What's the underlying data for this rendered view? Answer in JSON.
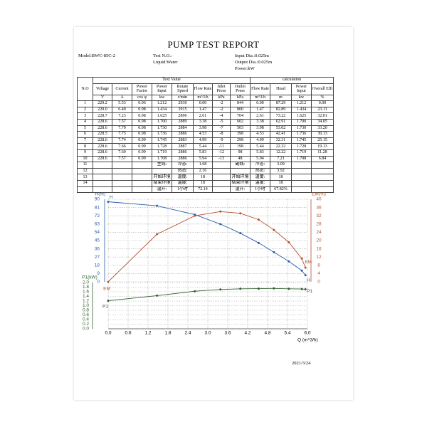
{
  "header": {
    "title": "PUMP TEST REPORT",
    "model": "Model:BWC-85C-2",
    "test_no": "Test N.O.:",
    "liquid": "Liquid:Water",
    "input_dia": "Input Dia.:0.025m",
    "output_dia": "Output Dia.:0.025m",
    "power": "Power:kW"
  },
  "table": {
    "group_headers": [
      "Text Value",
      "calculation"
    ],
    "columns": [
      "N.O",
      "Voltage",
      "Current",
      "Power Factor",
      "Power Input",
      "Rotate Speed",
      "Flow Rate",
      "Inlet Press",
      "Outlet Press",
      "Flow Rate",
      "Head",
      "Power Input",
      "Overall Effi"
    ],
    "units": [
      "V",
      "A",
      "cos φ",
      "kw",
      "r/min",
      "m^3/h",
      "kPa",
      "kPa",
      "m^3/h",
      "m",
      "kw",
      "%"
    ],
    "rows": [
      [
        "1",
        "229.2",
        "5.53",
        "0.96",
        "1.212",
        "2930",
        "0.00",
        "-2",
        "844",
        "0.00",
        "87.29",
        "1.212",
        "0.00"
      ],
      [
        "2",
        "229.0",
        "6.40",
        "0.98",
        "1.434",
        "2915",
        "1.47",
        "-2",
        "800",
        "1.47",
        "82.89",
        "1.434",
        "23.11"
      ],
      [
        "3",
        "228.7",
        "7.23",
        "0.98",
        "1.625",
        "2896",
        "2.61",
        "-4",
        "704",
        "2.61",
        "73.22",
        "1.625",
        "32.01"
      ],
      [
        "4",
        "228.6",
        "7.57",
        "0.98",
        "1.700",
        "2889",
        "3.38",
        "-5",
        "602",
        "3.38",
        "62.91",
        "1.700",
        "34.05"
      ],
      [
        "5",
        "228.6",
        "7.70",
        "0.98",
        "1.730",
        "2884",
        "3.98",
        "-7",
        "503",
        "3.98",
        "53.02",
        "1.730",
        "33.20"
      ],
      [
        "6",
        "228.5",
        "7.75",
        "0.98",
        "1.736",
        "2886",
        "4.53",
        "-8",
        "398",
        "4.53",
        "42.41",
        "1.736",
        "30.13"
      ],
      [
        "7",
        "228.6",
        "7.74",
        "0.99",
        "1.745",
        "2883",
        "4.99",
        "-9",
        "298",
        "4.99",
        "32.31",
        "1.745",
        "25.15"
      ],
      [
        "8",
        "228.6",
        "7.66",
        "0.99",
        "1.728",
        "2887",
        "5.44",
        "-11",
        "198",
        "5.44",
        "22.32",
        "1.728",
        "19.13"
      ],
      [
        "9",
        "228.6",
        "7.60",
        "0.99",
        "1.719",
        "2886",
        "5.83",
        "-12",
        "98",
        "5.83",
        "12.22",
        "1.719",
        "11.28"
      ],
      [
        "10",
        "228.6",
        "7.57",
        "0.99",
        "1.708",
        "2886",
        "5.94",
        "-13",
        "48",
        "5.94",
        "7.21",
        "1.708",
        "6.84"
      ],
      [
        "11",
        null,
        null,
        null,
        "主线:",
        "冷态:",
        "1.68",
        null,
        "副线:",
        "冷态:",
        "3.09",
        null,
        null
      ],
      [
        "12",
        null,
        null,
        null,
        null,
        "热态:",
        "2.16",
        null,
        null,
        "热态:",
        "3.92",
        null,
        null
      ],
      [
        "13",
        null,
        null,
        null,
        "开始环境",
        "温度:",
        "18",
        null,
        "开始环境",
        "温度:",
        "18",
        null,
        null
      ],
      [
        "14",
        null,
        null,
        null,
        "结束环境",
        "温度:",
        "18",
        null,
        "结束环境",
        "温度:",
        "18",
        null,
        null
      ],
      [
        null,
        null,
        null,
        null,
        "温升:",
        "1小时",
        "72.14",
        null,
        "温升:",
        "1小时",
        "67.82%",
        null,
        null
      ]
    ]
  },
  "chart_data": {
    "type": "line",
    "x_label": "Q (m^3/h)",
    "y_label": "H(m)",
    "y2_label": "EM(%)",
    "y3_label": "P1(kW)",
    "x": [
      0.0,
      1.47,
      2.61,
      3.38,
      3.98,
      4.53,
      4.99,
      5.44,
      5.83,
      5.94
    ],
    "xlim": [
      0,
      6
    ],
    "xticks": [
      {
        "value": 0,
        "label": "0.0"
      },
      0.6,
      1.2,
      1.8,
      2.4,
      {
        "value": 3,
        "label": "3.0"
      },
      3.6,
      4.2,
      4.8,
      5.4,
      {
        "value": 6,
        "label": "6.0"
      }
    ],
    "ylim": [
      0,
      90
    ],
    "yticks": [
      0,
      9,
      18,
      27,
      36,
      45,
      54,
      63,
      72,
      81,
      90
    ],
    "y2lim": [
      0,
      40
    ],
    "y2ticks": [
      0,
      4,
      8,
      12,
      16,
      20,
      24,
      28,
      32,
      36,
      40
    ],
    "y3lim": [
      0,
      2
    ],
    "y3ticks": [
      {
        "value": 0,
        "label": "0.0"
      },
      0.2,
      0.4,
      0.6,
      0.8,
      {
        "value": 1,
        "label": "1.0"
      },
      1.2,
      1.4,
      1.6,
      1.8,
      {
        "value": 2,
        "label": "2.0"
      }
    ],
    "grid": true,
    "series": [
      {
        "name": "H",
        "color": "#2a5caa",
        "values": [
          87.29,
          82.89,
          73.22,
          62.91,
          53.02,
          42.41,
          32.31,
          22.32,
          12.22,
          7.21
        ]
      },
      {
        "name": "EM",
        "color": "#b5502e",
        "axis": "y2",
        "values": [
          0.0,
          23.11,
          32.01,
          34.05,
          33.2,
          30.13,
          25.15,
          19.13,
          11.28,
          6.84
        ]
      },
      {
        "name": "P1",
        "color": "#2f5e2f",
        "axis": "y3",
        "values": [
          1.212,
          1.434,
          1.625,
          1.7,
          1.73,
          1.736,
          1.745,
          1.728,
          1.719,
          1.708
        ]
      }
    ]
  },
  "date": "2021/3/24"
}
